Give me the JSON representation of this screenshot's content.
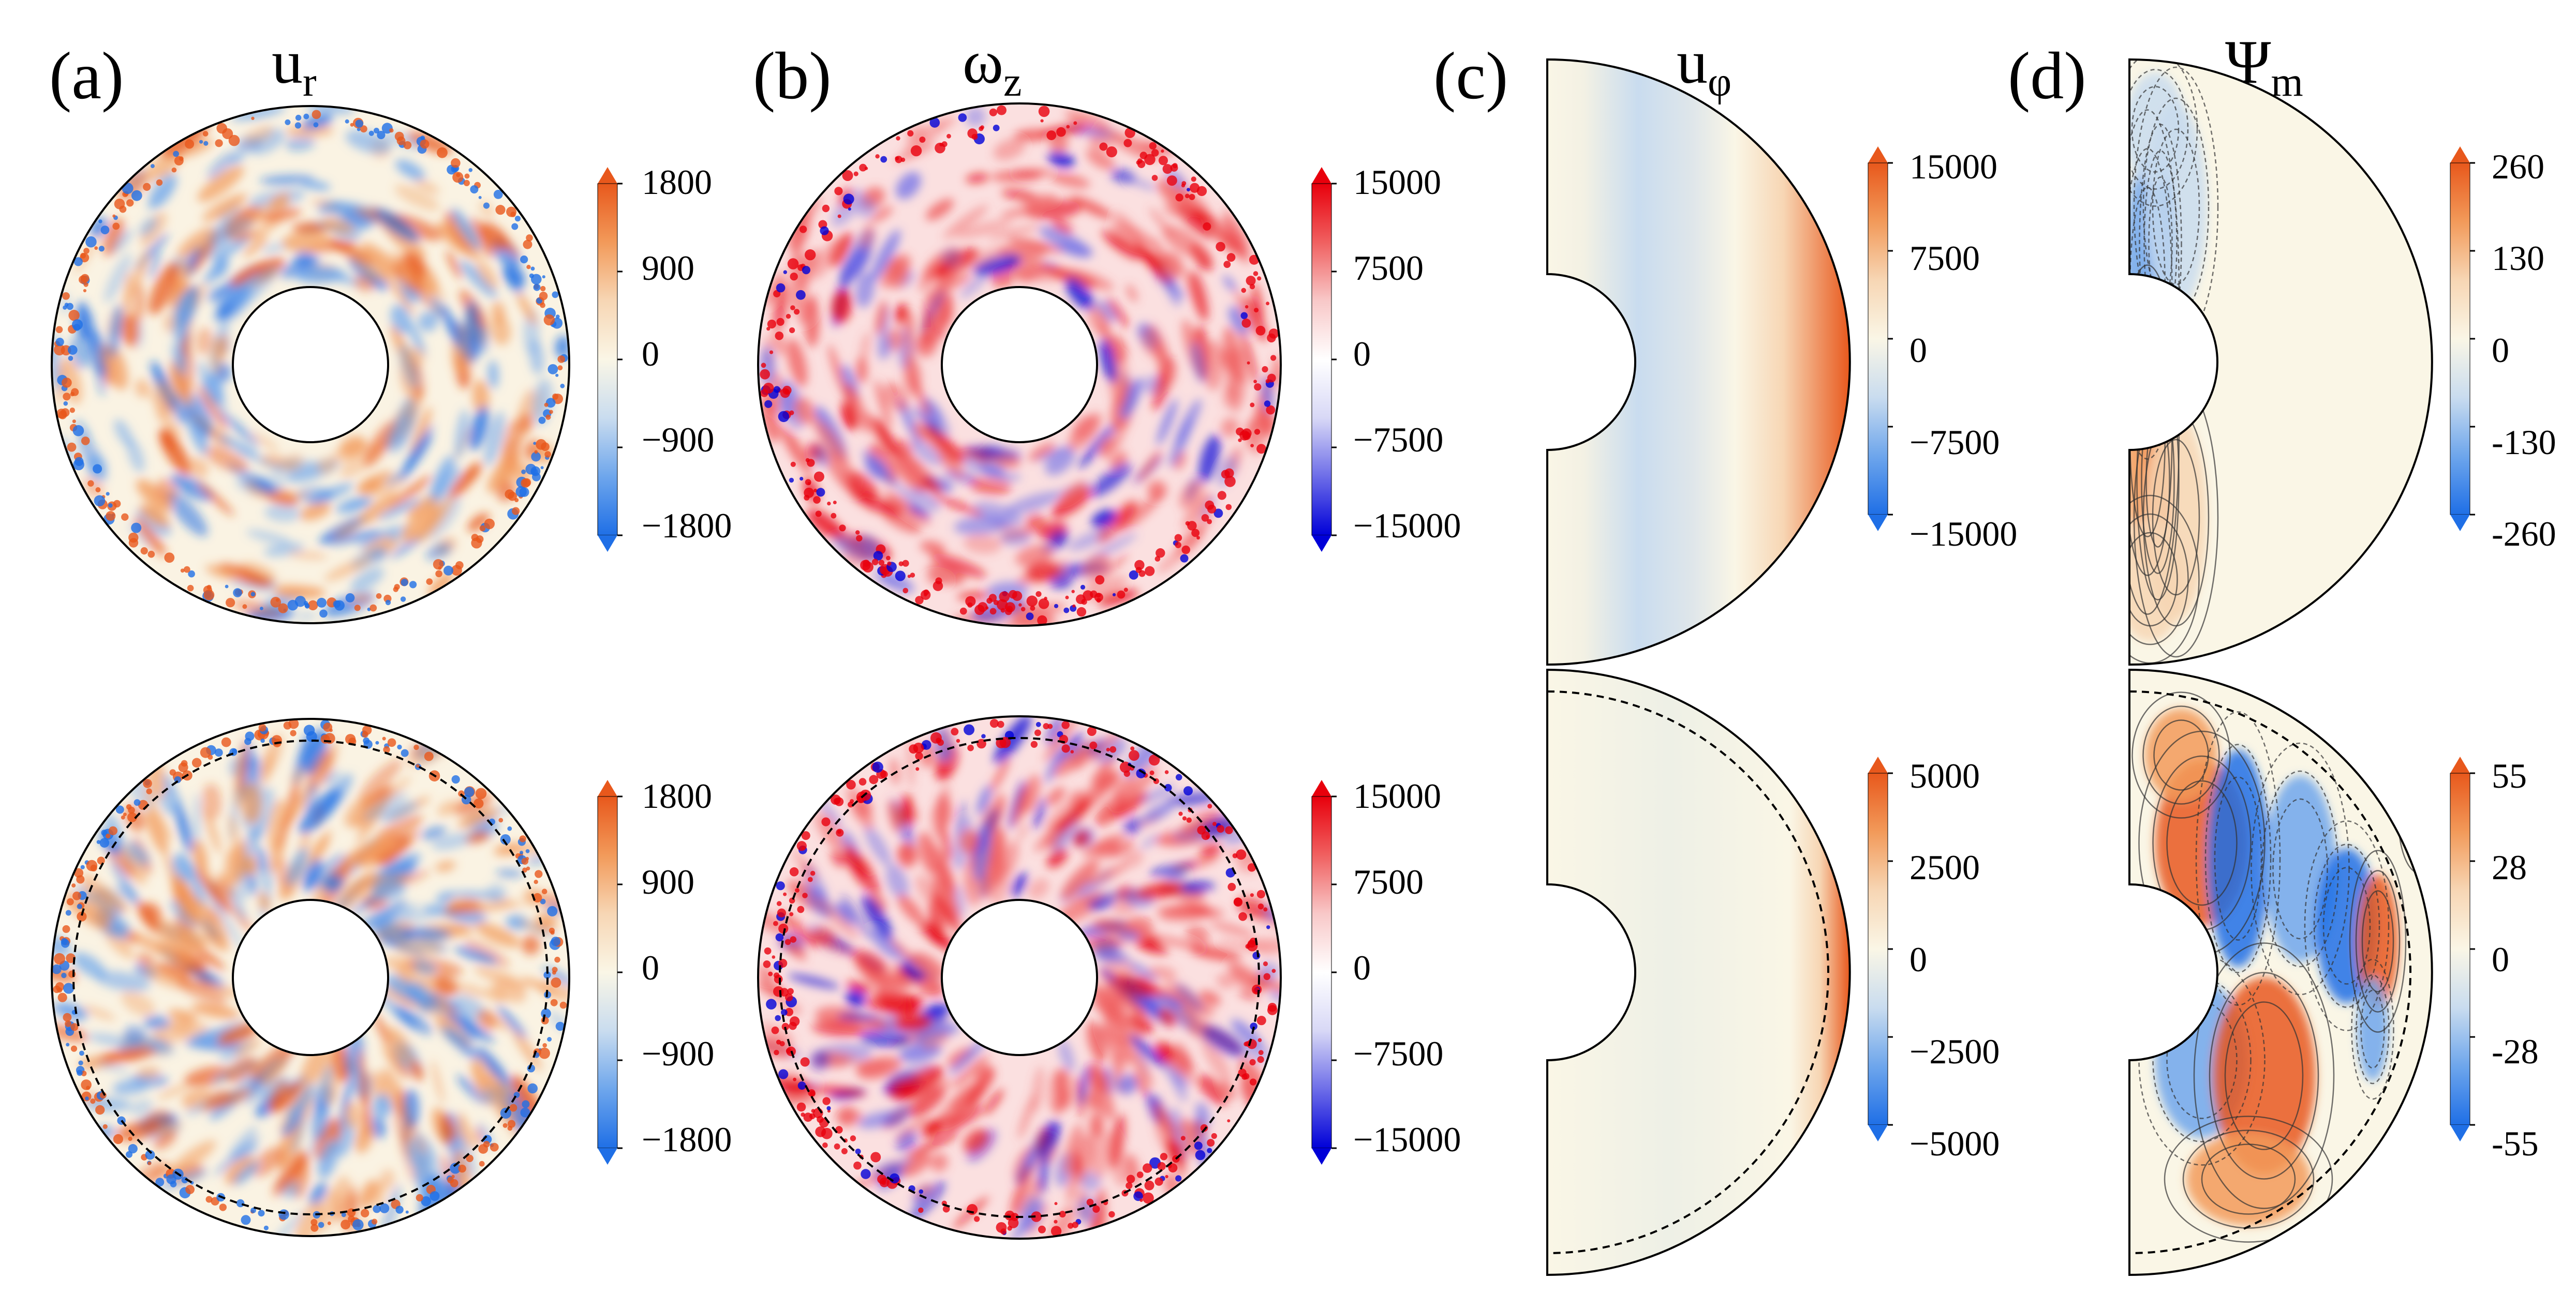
{
  "colors": {
    "diverging_orange_blue": [
      "#1f6fe6",
      "#6ea6ec",
      "#c9dcef",
      "#faf6e6",
      "#f7d6b4",
      "#f29a5a",
      "#e8581c"
    ],
    "diverging_red_blue": [
      "#0000d8",
      "#6d6de8",
      "#d8d8f6",
      "#ffffff",
      "#f8c8c8",
      "#f06060",
      "#e8000c"
    ],
    "outline": "#000000"
  },
  "chart_data": [
    {
      "type": "heatmap",
      "panel_label": "(a)",
      "title_main": "u",
      "title_sub": "r",
      "geometry": "annulus",
      "rows": [
        {
          "colorbar": {
            "ticks": [
              "1800",
              "900",
              "0",
              "−900",
              "−1800"
            ],
            "range": [
              -1800,
              1800
            ],
            "extend": "both"
          },
          "dashed_circle": false
        },
        {
          "colorbar": {
            "ticks": [
              "1800",
              "900",
              "0",
              "−900",
              "−1800"
            ],
            "range": [
              -1800,
              1800
            ],
            "extend": "both"
          },
          "dashed_circle": true
        }
      ]
    },
    {
      "type": "heatmap",
      "panel_label": "(b)",
      "title_main": "ω",
      "title_sub": "z",
      "geometry": "annulus",
      "rows": [
        {
          "colorbar": {
            "ticks": [
              "15000",
              "7500",
              "0",
              "−7500",
              "−15000"
            ],
            "range": [
              -15000,
              15000
            ],
            "extend": "both"
          },
          "dashed_circle": false
        },
        {
          "colorbar": {
            "ticks": [
              "15000",
              "7500",
              "0",
              "−7500",
              "−15000"
            ],
            "range": [
              -15000,
              15000
            ],
            "extend": "both"
          },
          "dashed_circle": true
        }
      ]
    },
    {
      "type": "heatmap",
      "panel_label": "(c)",
      "title_main": "u",
      "title_sub": "φ",
      "geometry": "half-annulus",
      "rows": [
        {
          "colorbar": {
            "ticks": [
              "15000",
              "7500",
              "0",
              "−7500",
              "−15000"
            ],
            "range": [
              -15000,
              15000
            ],
            "extend": "both"
          },
          "dashed_circle": false
        },
        {
          "colorbar": {
            "ticks": [
              "5000",
              "2500",
              "0",
              "−2500",
              "−5000"
            ],
            "range": [
              -5000,
              5000
            ],
            "extend": "both"
          },
          "dashed_circle": true
        }
      ]
    },
    {
      "type": "heatmap",
      "panel_label": "(d)",
      "title_main": "Ψ",
      "title_sub": "m",
      "geometry": "half-annulus",
      "rows": [
        {
          "colorbar": {
            "ticks": [
              "260",
              "130",
              "0",
              "-130",
              "-260"
            ],
            "range": [
              -260,
              260
            ],
            "extend": "both"
          },
          "dashed_circle": false
        },
        {
          "colorbar": {
            "ticks": [
              "55",
              "28",
              "0",
              "-28",
              "-55"
            ],
            "range": [
              -55,
              55
            ],
            "extend": "both"
          },
          "dashed_circle": true
        }
      ]
    }
  ]
}
